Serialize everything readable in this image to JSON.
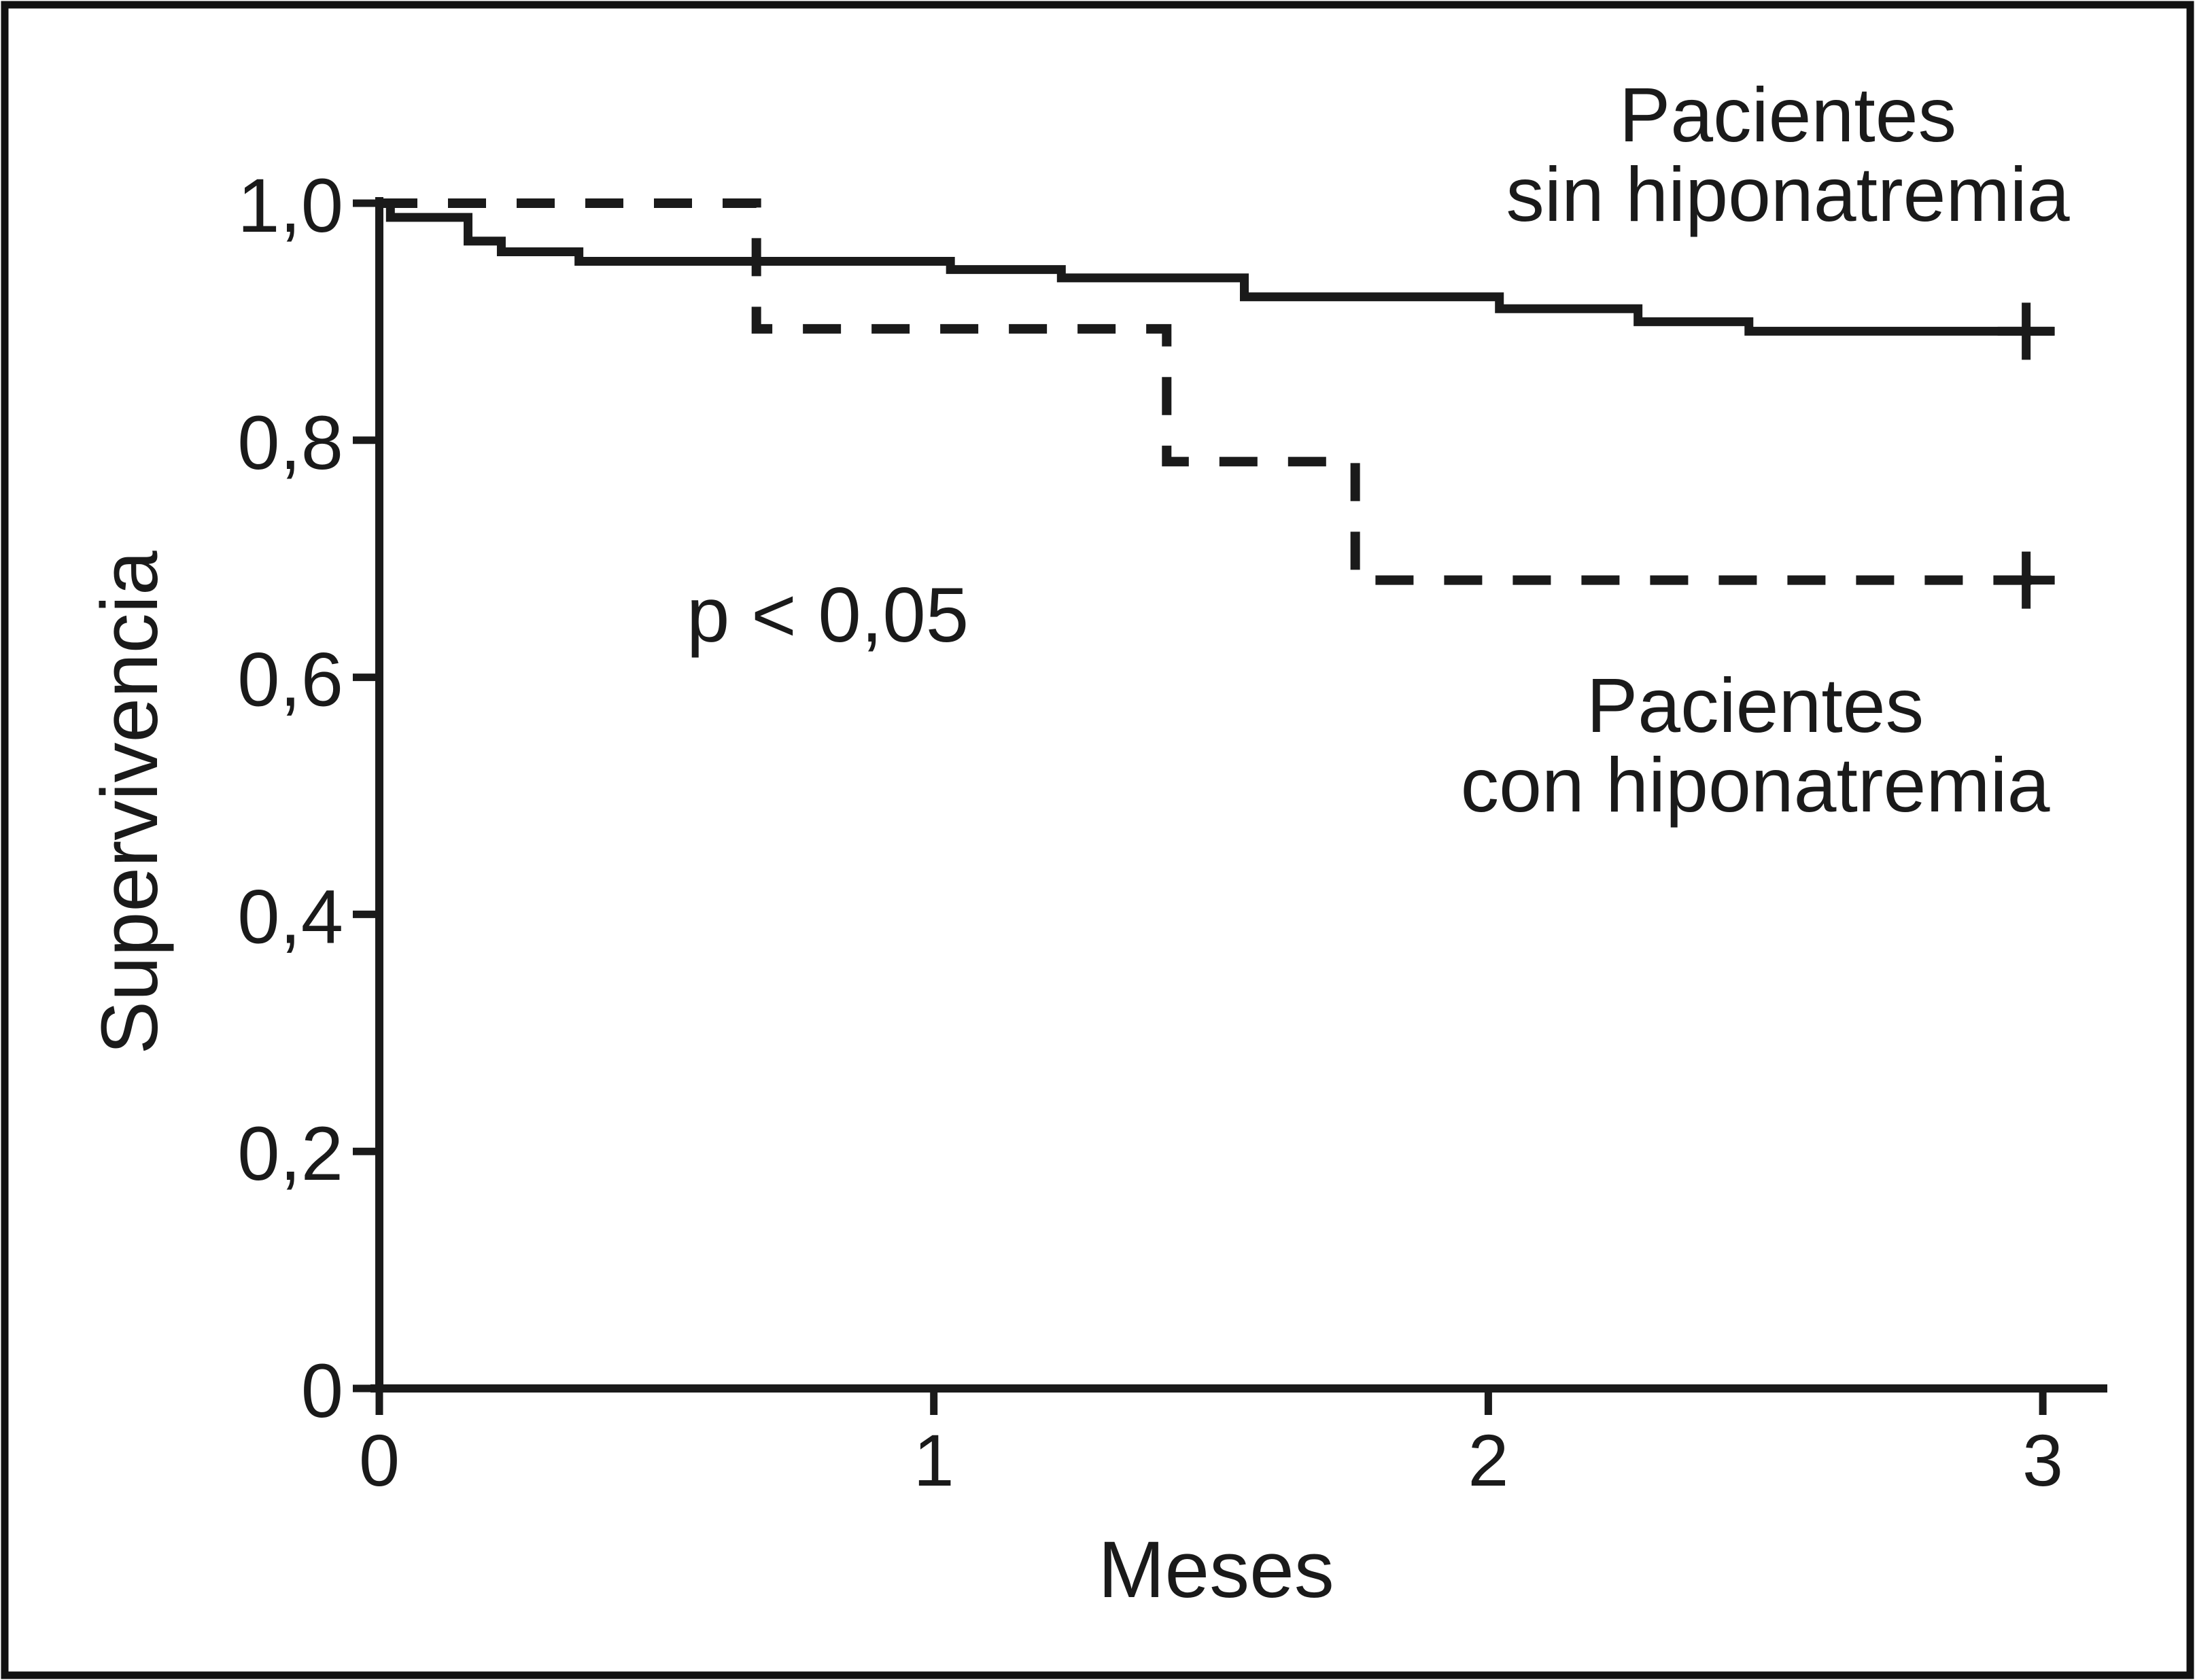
{
  "figure": {
    "background": "#ffffff",
    "ink_color": "#1a1a1a"
  },
  "chart_data": {
    "type": "line",
    "subtype": "kaplan-meier-step-survival",
    "title": "",
    "xlabel": "Meses",
    "ylabel": "Supervivencia",
    "xlim": [
      0,
      3
    ],
    "ylim": [
      0,
      1.0
    ],
    "grid": false,
    "legend_position": "inline-annotations",
    "x_ticks": [
      {
        "value": 0,
        "label": "0"
      },
      {
        "value": 1,
        "label": "1"
      },
      {
        "value": 2,
        "label": "2"
      },
      {
        "value": 3,
        "label": "3"
      }
    ],
    "y_ticks": [
      {
        "value": 0,
        "label": "0"
      },
      {
        "value": 0.2,
        "label": "0,2"
      },
      {
        "value": 0.4,
        "label": "0,4"
      },
      {
        "value": 0.6,
        "label": "0,6"
      },
      {
        "value": 0.8,
        "label": "0,8"
      },
      {
        "value": 1.0,
        "label": "1,0"
      }
    ],
    "annotation": {
      "text": "p < 0,05"
    },
    "series": [
      {
        "name": "Pacientes sin hiponatremia",
        "label_line1": "Pacientes",
        "label_line2": "sin hiponatremia",
        "line_style": "solid",
        "steps": [
          [
            0.0,
            1.0
          ],
          [
            0.02,
            0.988
          ],
          [
            0.16,
            0.968
          ],
          [
            0.22,
            0.959
          ],
          [
            0.36,
            0.951
          ],
          [
            1.03,
            0.944
          ],
          [
            1.23,
            0.937
          ],
          [
            1.56,
            0.921
          ],
          [
            2.02,
            0.911
          ],
          [
            2.27,
            0.9
          ],
          [
            2.47,
            0.892
          ]
        ],
        "end_x": 3.02,
        "censor": {
          "x": 2.97,
          "y": 0.892
        }
      },
      {
        "name": "Pacientes con hiponatremia",
        "label_line1": "Pacientes",
        "label_line2": "con hiponatremia",
        "line_style": "dashed",
        "steps": [
          [
            0.0,
            1.0
          ],
          [
            0.68,
            0.894
          ],
          [
            1.42,
            0.782
          ],
          [
            1.76,
            0.682
          ]
        ],
        "end_x": 3.02,
        "censor": {
          "x": 2.97,
          "y": 0.682
        }
      }
    ]
  }
}
